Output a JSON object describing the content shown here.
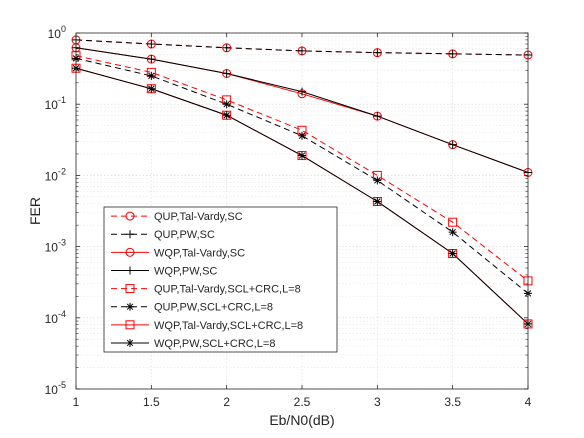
{
  "chart_data": {
    "type": "line",
    "xlabel": "Eb/N0(dB)",
    "ylabel": "FER",
    "xlim": [
      1,
      4
    ],
    "ylim": [
      1e-05,
      1
    ],
    "yscale": "log",
    "grid": "on (major and minor)",
    "legend_position": "lower-left",
    "x": [
      1,
      1.5,
      2,
      2.5,
      3,
      3.5,
      4
    ],
    "x_ticks": [
      "1",
      "1.5",
      "2",
      "2.5",
      "3",
      "3.5",
      "4"
    ],
    "y_ticks": [
      {
        "mantissa": "10",
        "exp": "0",
        "value": 1
      },
      {
        "mantissa": "10",
        "exp": "-1",
        "value": 0.1
      },
      {
        "mantissa": "10",
        "exp": "-2",
        "value": 0.01
      },
      {
        "mantissa": "10",
        "exp": "-3",
        "value": 0.001
      },
      {
        "mantissa": "10",
        "exp": "-4",
        "value": 0.0001
      },
      {
        "mantissa": "10",
        "exp": "-5",
        "value": 1e-05
      }
    ],
    "series": [
      {
        "name": "QUP,Tal-Vardy,SC",
        "color": "#ff0000",
        "dash": "dashed",
        "marker": "circle",
        "values": [
          0.8,
          0.7,
          0.62,
          0.56,
          0.53,
          0.51,
          0.49
        ]
      },
      {
        "name": "QUP,PW,SC",
        "color": "#000000",
        "dash": "dashed",
        "marker": "plus",
        "values": [
          0.8,
          0.7,
          0.62,
          0.56,
          0.53,
          0.51,
          0.49
        ]
      },
      {
        "name": "WQP,Tal-Vardy,SC",
        "color": "#ff0000",
        "dash": "solid",
        "marker": "circle",
        "values": [
          0.62,
          0.43,
          0.27,
          0.14,
          0.068,
          0.027,
          0.011
        ]
      },
      {
        "name": "WQP,PW,SC",
        "color": "#000000",
        "dash": "solid",
        "marker": "plus",
        "values": [
          0.62,
          0.43,
          0.27,
          0.15,
          0.068,
          0.027,
          0.011
        ]
      },
      {
        "name": "QUP,Tal-Vardy,SCL+CRC,L=8",
        "color": "#ff0000",
        "dash": "dashed",
        "marker": "square",
        "values": [
          0.48,
          0.28,
          0.115,
          0.043,
          0.01,
          0.0022,
          0.00033
        ]
      },
      {
        "name": "QUP,PW,SCL+CRC,L=8",
        "color": "#000000",
        "dash": "dashed",
        "marker": "asterisk",
        "values": [
          0.44,
          0.25,
          0.1,
          0.036,
          0.0085,
          0.0016,
          0.00022
        ]
      },
      {
        "name": "WQP,Tal-Vardy,SCL+CRC,L=8",
        "color": "#ff0000",
        "dash": "solid",
        "marker": "square",
        "values": [
          0.32,
          0.165,
          0.07,
          0.019,
          0.0043,
          0.0008,
          8.2e-05
        ]
      },
      {
        "name": "WQP,PW,SCL+CRC,L=8",
        "color": "#000000",
        "dash": "solid",
        "marker": "asterisk",
        "values": [
          0.32,
          0.165,
          0.07,
          0.019,
          0.0043,
          0.0008,
          8.2e-05
        ]
      }
    ]
  }
}
